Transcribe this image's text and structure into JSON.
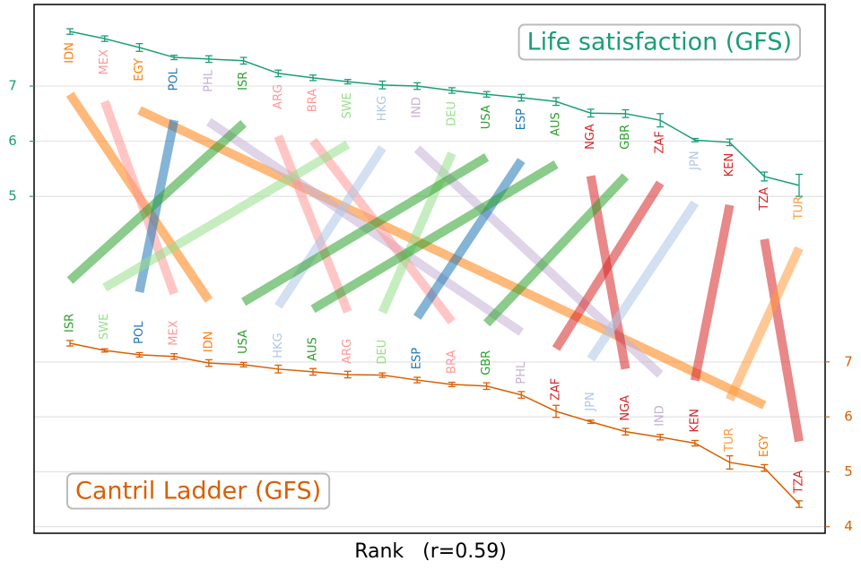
{
  "chart_data": {
    "type": "bump",
    "x_label": "Rank   (r=0.59)",
    "grid": true,
    "colors": {
      "IDN": "#ff7f0e",
      "MEX": "#ff9896",
      "EGY": "#ff7f0e",
      "POL": "#1f77b4",
      "PHL": "#c5b0d5",
      "ISR": "#2ca02c",
      "ARG": "#ff9896",
      "BRA": "#ff9896",
      "SWE": "#98df8a",
      "HKG": "#aec7e8",
      "IND": "#c5b0d5",
      "DEU": "#98df8a",
      "USA": "#2ca02c",
      "ESP": "#1f77b4",
      "AUS": "#2ca02c",
      "NGA": "#d62728",
      "GBR": "#2ca02c",
      "ZAF": "#d62728",
      "JPN": "#aec7e8",
      "KEN": "#d62728",
      "TZA": "#d62728",
      "TUR": "#ff9a3c"
    },
    "ylim": [
      -1.11,
      8.48
    ],
    "yticks": [
      5,
      6,
      7
    ],
    "y2lim": [
      3.88,
      13.51
    ],
    "y2ticks": [
      4,
      5,
      6,
      7
    ],
    "series": [
      {
        "name": "Life satisfaction (GFS)",
        "color": "#1b9e77",
        "axis": "y",
        "categories": [
          "IDN",
          "MEX",
          "EGY",
          "POL",
          "PHL",
          "ISR",
          "ARG",
          "BRA",
          "SWE",
          "HKG",
          "IND",
          "DEU",
          "USA",
          "ESP",
          "AUS",
          "NGA",
          "GBR",
          "ZAF",
          "JPN",
          "KEN",
          "TZA",
          "TUR"
        ],
        "values": [
          7.99,
          7.86,
          7.7,
          7.52,
          7.49,
          7.46,
          7.23,
          7.15,
          7.08,
          7.02,
          7.0,
          6.92,
          6.85,
          6.79,
          6.72,
          6.51,
          6.5,
          6.38,
          6.02,
          5.98,
          5.36,
          5.2
        ],
        "errors": [
          0.05,
          0.05,
          0.07,
          0.04,
          0.06,
          0.06,
          0.06,
          0.05,
          0.04,
          0.07,
          0.06,
          0.05,
          0.05,
          0.06,
          0.07,
          0.07,
          0.07,
          0.12,
          0.03,
          0.06,
          0.08,
          0.2
        ]
      },
      {
        "name": "Cantril Ladder (GFS)",
        "color": "#d95f02",
        "axis": "y2",
        "categories": [
          "ISR",
          "SWE",
          "POL",
          "MEX",
          "IDN",
          "USA",
          "HKG",
          "AUS",
          "ARG",
          "DEU",
          "ESP",
          "BRA",
          "GBR",
          "PHL",
          "ZAF",
          "JPN",
          "NGA",
          "IND",
          "KEN",
          "TUR",
          "EGY",
          "TZA"
        ],
        "values": [
          7.34,
          7.21,
          7.13,
          7.1,
          6.98,
          6.95,
          6.87,
          6.82,
          6.77,
          6.76,
          6.67,
          6.59,
          6.56,
          6.4,
          6.1,
          5.91,
          5.73,
          5.63,
          5.52,
          5.17,
          5.07,
          4.41
        ],
        "errors": [
          0.05,
          0.03,
          0.04,
          0.05,
          0.06,
          0.04,
          0.07,
          0.06,
          0.06,
          0.04,
          0.05,
          0.04,
          0.06,
          0.06,
          0.11,
          0.03,
          0.06,
          0.05,
          0.05,
          0.12,
          0.06,
          0.06
        ]
      }
    ]
  }
}
